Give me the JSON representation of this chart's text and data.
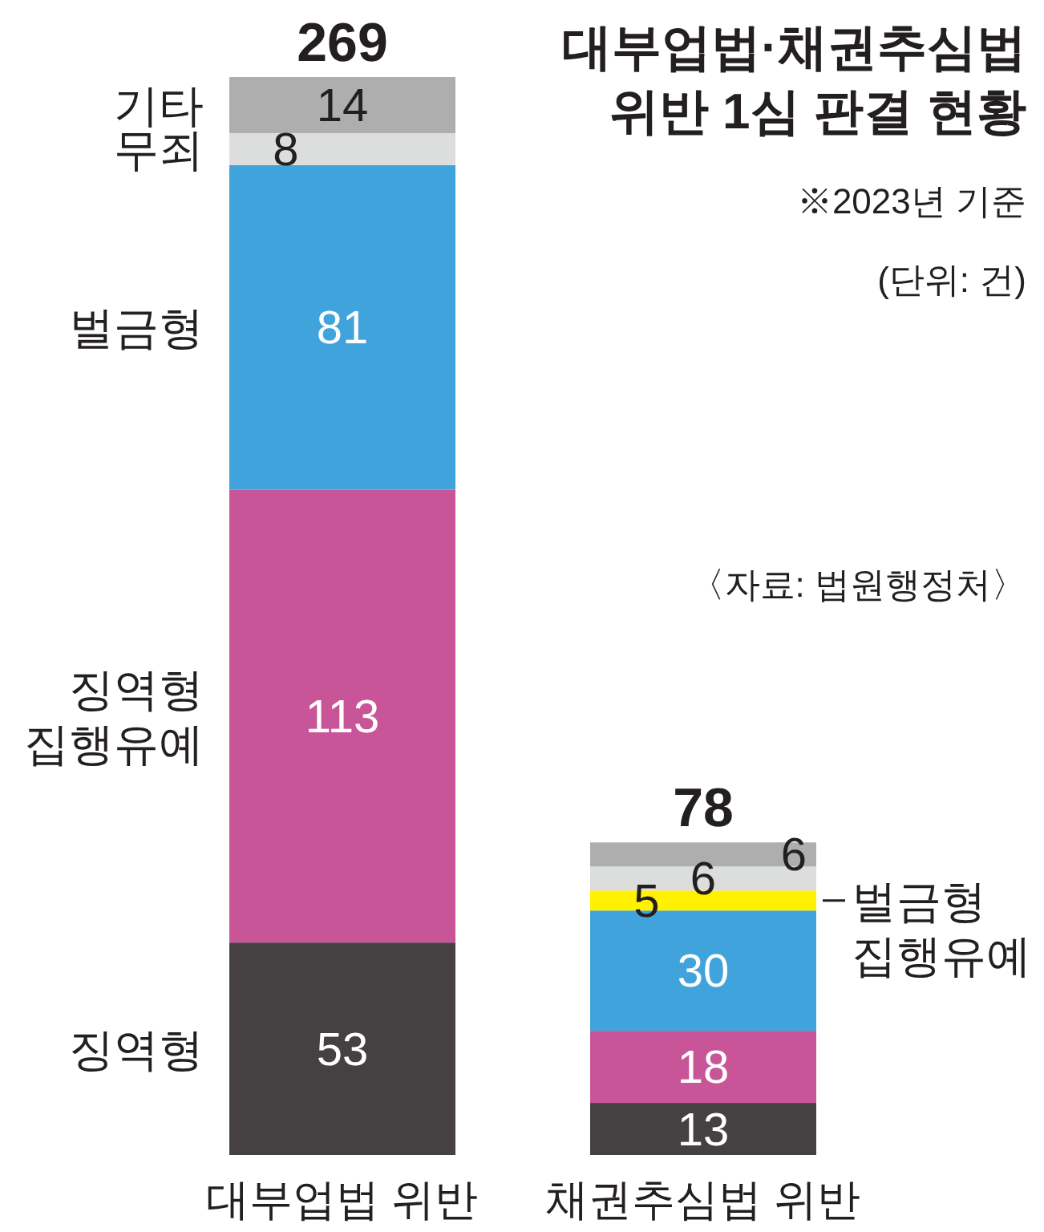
{
  "chart_data": {
    "type": "bar",
    "stacked": true,
    "data_labels": true,
    "title": "대부업법·채권추심법 위반 1심 판결 현황",
    "annotations": [
      "※2023년 기준",
      "(단위: 건)",
      "〈자료: 법원행정처〉"
    ],
    "categories": [
      "대부업법 위반",
      "채권추심법 위반"
    ],
    "totals": [
      "269",
      "78"
    ],
    "series": [
      {
        "name": "징역형",
        "color": "#454142",
        "values": [
          53,
          13
        ]
      },
      {
        "name": "징역형 집행유예",
        "color": "#c95599",
        "values": [
          113,
          18
        ]
      },
      {
        "name": "벌금형",
        "color": "#40a3dc",
        "values": [
          81,
          30
        ]
      },
      {
        "name": "벌금형 집행유예",
        "color": "#fff100",
        "values": [
          null,
          5
        ]
      },
      {
        "name": "무죄",
        "color": "#dcdddd",
        "values": [
          8,
          6
        ]
      },
      {
        "name": "기타",
        "color": "#aeaeae",
        "values": [
          14,
          6
        ]
      }
    ]
  }
}
